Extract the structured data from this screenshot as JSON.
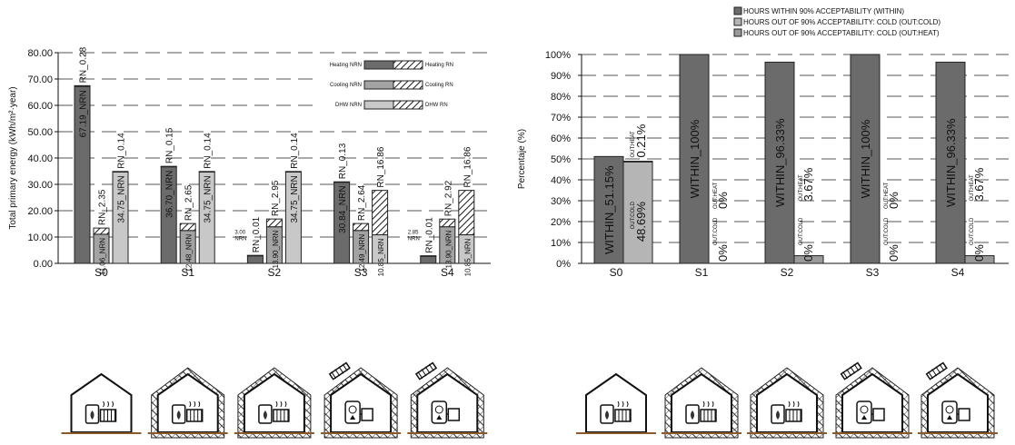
{
  "chart_data": [
    {
      "type": "bar",
      "ylabel": "Total primary energy (kWh/m²·year)",
      "ylim": [
        0,
        80
      ],
      "yticks": [
        "0.00",
        "10.00",
        "20.00",
        "30.00",
        "40.00",
        "50.00",
        "60.00",
        "70.00",
        "80.00"
      ],
      "grid": true,
      "legend_placement": "top-right",
      "categories": [
        "S0",
        "S1",
        "S2",
        "S3",
        "S4"
      ],
      "legend": [
        {
          "left": "Heating NRN",
          "right": "Heating RN"
        },
        {
          "left": "Cooling NRN",
          "right": "Cooling RN"
        },
        {
          "left": "DHW NRN",
          "right": "DHW RN"
        }
      ],
      "colors": {
        "heating": "#6b6b6b",
        "cooling": "#a3a3a3",
        "dhw": "#c8c8c8",
        "edge": "#222222"
      },
      "series": [
        {
          "name": "Heating",
          "nrn": [
            67.19,
            36.7,
            3.0,
            30.84,
            2.85
          ],
          "rn": [
            0.28,
            0.15,
            0.01,
            0.13,
            0.01
          ],
          "nrn_labels": [
            "67.19_NRN",
            "36.70_NRN",
            "3.00\nNRN",
            "30.84_NRN",
            "2.85\nNRN"
          ],
          "rn_labels": [
            "RN_0.28",
            "RN_0.15",
            "RN_0.01",
            "RN_0.13",
            "RN_0.01"
          ]
        },
        {
          "name": "Cooling",
          "nrn": [
            11.06,
            12.48,
            13.9,
            12.49,
            13.9
          ],
          "rn": [
            2.35,
            2.65,
            2.95,
            2.64,
            2.92
          ],
          "nrn_labels": [
            "11.06_NRN",
            "12.48_NRN",
            "13.90_NRN",
            "12.49_NRN",
            "13.90_NRN"
          ],
          "rn_labels": [
            "RN_2.35",
            "RN_2.65",
            "RN_2.95",
            "RN_2.64",
            "RN_2.92"
          ]
        },
        {
          "name": "DHW",
          "nrn": [
            34.75,
            34.75,
            34.75,
            10.85,
            10.85
          ],
          "rn": [
            0.14,
            0.14,
            0.14,
            16.86,
            16.86
          ],
          "nrn_labels": [
            "34.75_NRN",
            "34.75_NRN",
            "34.75_NRN",
            "10.85_NRN",
            "10.85_NRN"
          ],
          "rn_labels": [
            "RN_0.14",
            "RN_0.14",
            "RN_0.14",
            "RN_16.86",
            "RN_16.86"
          ]
        }
      ]
    },
    {
      "type": "bar",
      "ylabel": "Percentaje (%)",
      "ylim": [
        0,
        100
      ],
      "yticks": [
        "0%",
        "10%",
        "20%",
        "30%",
        "40%",
        "50%",
        "60%",
        "70%",
        "80%",
        "90%",
        "100%"
      ],
      "grid": true,
      "legend_placement": "top",
      "categories": [
        "S0",
        "S1",
        "S2",
        "S3",
        "S4"
      ],
      "legend": [
        "HOURS WITHIN 90% ACCEPTABILITY  (WITHIN)",
        "HOURS OUT OF 90% ACCEPTABILITY: COLD  (OUT:COLD)",
        "HOURS OUT OF 90% ACCEPTABILITY: COLD  (OUT:HEAT)"
      ],
      "colors": {
        "within": "#6b6b6b",
        "out_cold": "#b5b5b5",
        "out_heat": "#9a9a9a"
      },
      "series": [
        {
          "name": "WITHIN",
          "values": [
            51.15,
            100,
            96.33,
            100,
            96.33
          ],
          "labels": [
            "WITHIN_51.15%",
            "WITHIN_100%",
            "WITHIN_96.33%",
            "WITHIN_100%",
            "WITHIN_96.33%"
          ]
        },
        {
          "name": "OUT:COLD",
          "values": [
            48.69,
            0,
            0,
            0,
            0
          ],
          "tags": [
            "OUT:COLD",
            "OUT:COLD",
            "OUT:COLD",
            "OUT:COLD",
            "OUT:COLD"
          ],
          "labels": [
            "48.69%",
            "0%",
            "0%",
            "0%",
            "0%"
          ]
        },
        {
          "name": "OUT:HEAT",
          "values": [
            0.21,
            0,
            3.67,
            0,
            3.67
          ],
          "tags": [
            "OUT:HEAT",
            "OUT:HEAT",
            "OUT:HEAT",
            "OUT:HEAT",
            "OUT:HEAT"
          ],
          "labels": [
            "0.21%",
            "0%",
            "3.67%",
            "0%",
            "3.67%"
          ]
        }
      ]
    }
  ],
  "icons": {
    "scenarios": [
      "S0",
      "S1",
      "S2",
      "S3",
      "S4"
    ],
    "insulated": [
      false,
      true,
      true,
      true,
      true
    ],
    "solar_panels": [
      false,
      false,
      false,
      true,
      true
    ],
    "system": [
      "boiler-radiator",
      "boiler-radiator",
      "boiler-radiator",
      "heat-pump",
      "heat-pump"
    ]
  }
}
